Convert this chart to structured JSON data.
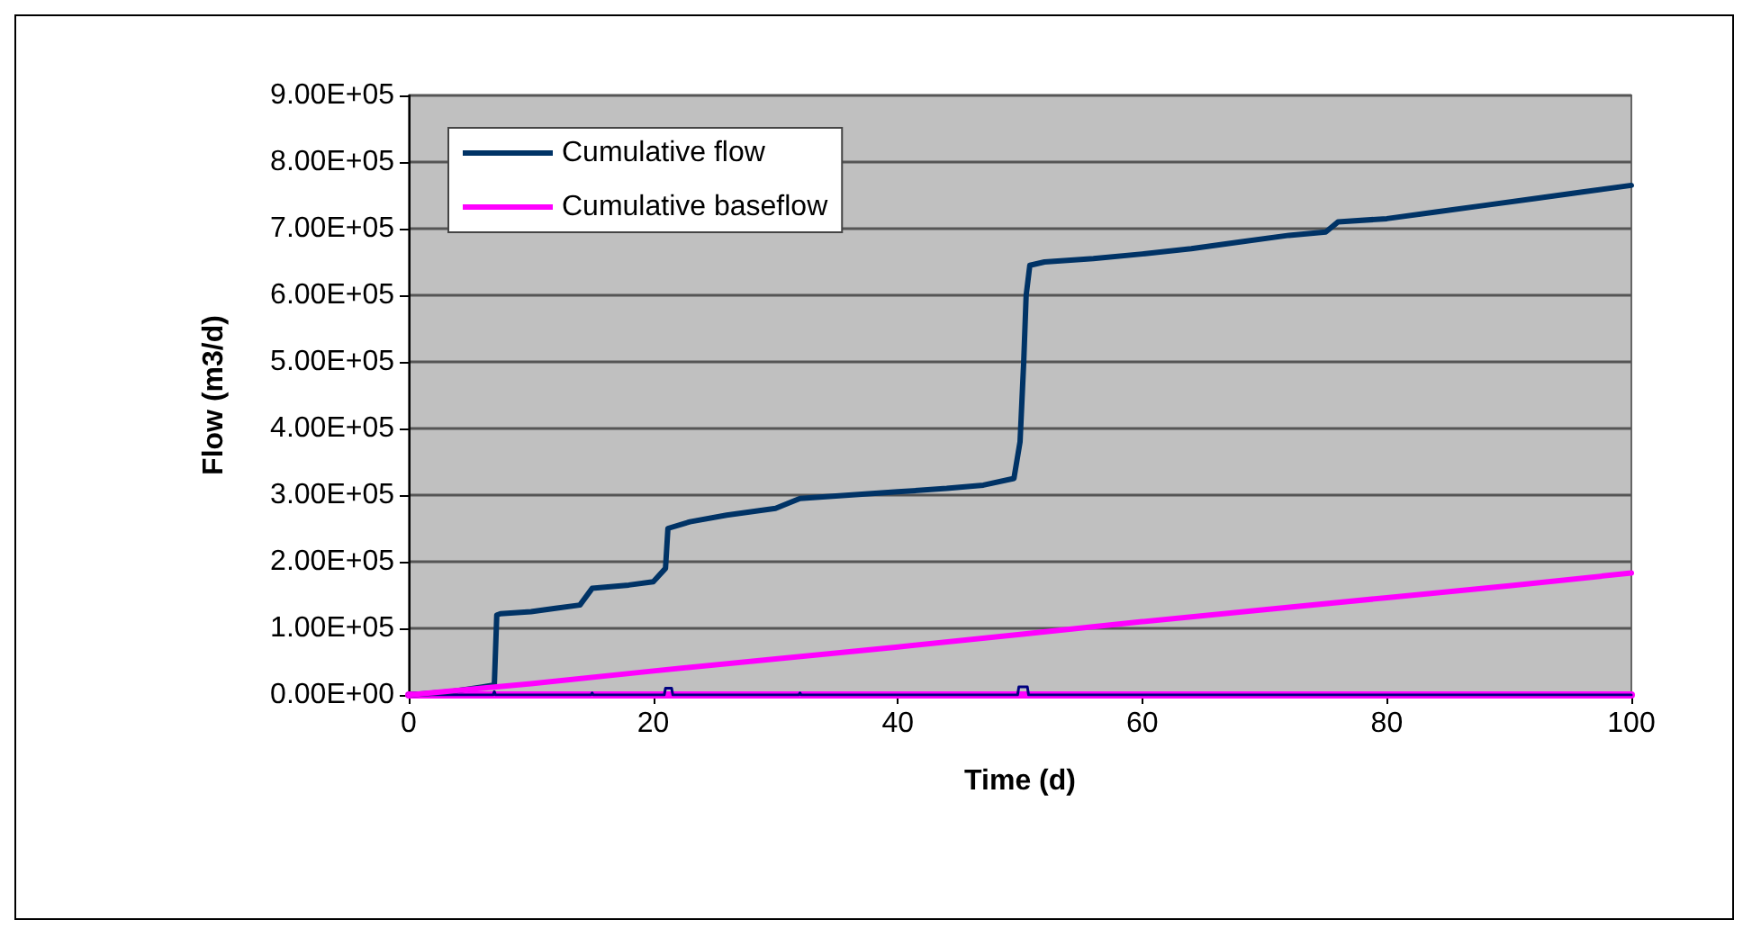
{
  "chart_data": {
    "type": "line",
    "xlabel": "Time (d)",
    "ylabel": "Flow (m3/d)",
    "xlim": [
      0,
      100
    ],
    "xticks": [
      0,
      20,
      40,
      60,
      80,
      100
    ],
    "ylim": [
      0,
      900000
    ],
    "yticks": [
      {
        "value": 0,
        "label": "0.00E+00"
      },
      {
        "value": 100000,
        "label": "1.00E+05"
      },
      {
        "value": 200000,
        "label": "2.00E+05"
      },
      {
        "value": 300000,
        "label": "3.00E+05"
      },
      {
        "value": 400000,
        "label": "4.00E+05"
      },
      {
        "value": 500000,
        "label": "5.00E+05"
      },
      {
        "value": 600000,
        "label": "6.00E+05"
      },
      {
        "value": 700000,
        "label": "7.00E+05"
      },
      {
        "value": 800000,
        "label": "8.00E+05"
      },
      {
        "value": 900000,
        "label": "9.00E+05"
      }
    ],
    "grid": "y",
    "legend": "top left",
    "marker": "none",
    "line_style": "solid",
    "series": [
      {
        "name": "Cumulative flow",
        "color": "#003366",
        "x": [
          0,
          3.5,
          6,
          7,
          7.2,
          7.5,
          10,
          12,
          14,
          15,
          18,
          20,
          21,
          21.2,
          23,
          26,
          30,
          32,
          36,
          40,
          44,
          47,
          49.5,
          50,
          50.3,
          50.5,
          50.8,
          52,
          56,
          60,
          64,
          68,
          72,
          75,
          76,
          80,
          84,
          88,
          92,
          96,
          100
        ],
        "values": [
          0,
          5000,
          12000,
          15000,
          120000,
          122000,
          125000,
          130000,
          135000,
          160000,
          165000,
          170000,
          190000,
          250000,
          260000,
          270000,
          280000,
          295000,
          300000,
          305000,
          310000,
          315000,
          325000,
          380000,
          500000,
          600000,
          645000,
          650000,
          655000,
          662000,
          670000,
          680000,
          690000,
          695000,
          710000,
          715000,
          725000,
          735000,
          745000,
          755000,
          765000
        ]
      },
      {
        "name": "Cumulative baseflow",
        "color": "#ff00ff",
        "x": [
          0,
          10,
          20,
          30,
          40,
          50,
          60,
          70,
          80,
          90,
          100
        ],
        "values": [
          0,
          17000,
          36000,
          54000,
          72000,
          91000,
          110000,
          128000,
          146000,
          164000,
          183000
        ]
      },
      {
        "color": "#000080",
        "x": [
          0,
          6.9,
          7,
          7.1,
          14.9,
          15,
          15.1,
          20.9,
          21,
          21.5,
          21.6,
          31.9,
          32,
          32.1,
          49.8,
          49.9,
          50.6,
          50.7,
          100
        ],
        "values": [
          0,
          0,
          5000,
          0,
          0,
          3000,
          0,
          0,
          10000,
          10000,
          0,
          0,
          3000,
          0,
          0,
          12000,
          12000,
          0,
          0
        ]
      },
      {
        "color": "#ff00ff",
        "x": [
          0,
          100
        ],
        "values": [
          0,
          0
        ]
      }
    ]
  }
}
